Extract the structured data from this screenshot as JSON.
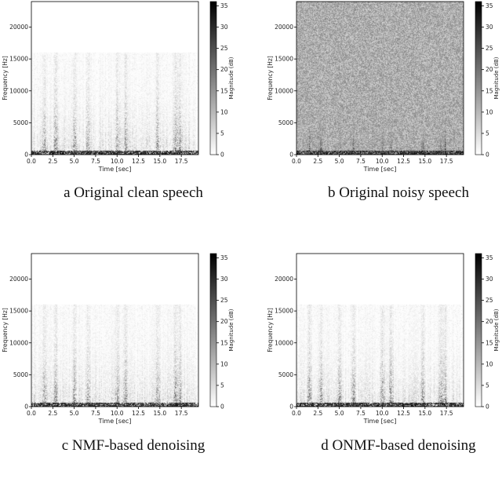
{
  "figure": {
    "panels": [
      {
        "id": "a",
        "caption": "a Original clean speech"
      },
      {
        "id": "b",
        "caption": "b Original noisy speech"
      },
      {
        "id": "c",
        "caption": "c NMF-based denoising"
      },
      {
        "id": "d",
        "caption": "d ONMF-based denoising"
      }
    ]
  },
  "chart_data": [
    {
      "type": "heatmap",
      "panel": "a",
      "title": "a Original clean speech",
      "xlabel": "Time [sec]",
      "ylabel": "Frequency [Hz]",
      "colorbar_label": "Magnitude (dB)",
      "xlim": [
        0,
        19.5
      ],
      "ylim": [
        0,
        24000
      ],
      "xticks": [
        "0.0",
        "2.5",
        "5.0",
        "7.5",
        "10.0",
        "12.5",
        "15.0",
        "17.5"
      ],
      "yticks": [
        "0",
        "5000",
        "10000",
        "15000",
        "20000"
      ],
      "colorbar_range": [
        0,
        36
      ],
      "colorbar_ticks": [
        "0",
        "5",
        "10",
        "15",
        "20",
        "25",
        "30",
        "35"
      ],
      "colormap": "gray_r",
      "background_noise": 0,
      "content_cutoff_hz": 16000,
      "speech_bursts_sec": [
        1.5,
        2.8,
        5.0,
        6.6,
        10.0,
        11.0,
        14.7,
        16.8,
        17.3
      ],
      "grid": false
    },
    {
      "type": "heatmap",
      "panel": "b",
      "title": "b Original noisy speech",
      "xlabel": "Time [sec]",
      "ylabel": "Frequency [Hz]",
      "colorbar_label": "Magnitude (dB)",
      "xlim": [
        0,
        19.5
      ],
      "ylim": [
        0,
        24000
      ],
      "xticks": [
        "0.0",
        "2.5",
        "5.0",
        "7.5",
        "10.0",
        "12.5",
        "15.0",
        "17.5"
      ],
      "yticks": [
        "0",
        "5000",
        "10000",
        "15000",
        "20000"
      ],
      "colorbar_range": [
        0,
        36
      ],
      "colorbar_ticks": [
        "0",
        "5",
        "10",
        "15",
        "20",
        "25",
        "30",
        "35"
      ],
      "colormap": "gray_r",
      "background_noise": 0.32,
      "content_cutoff_hz": 24000,
      "speech_bursts_sec": [
        1.5,
        2.8,
        5.0,
        6.6,
        10.0,
        11.0,
        14.7,
        16.8,
        17.3
      ],
      "grid": false
    },
    {
      "type": "heatmap",
      "panel": "c",
      "title": "c NMF-based denoising",
      "xlabel": "Time [sec]",
      "ylabel": "Frequency [Hz]",
      "colorbar_label": "Magnitude (dB)",
      "xlim": [
        0,
        19.5
      ],
      "ylim": [
        0,
        24000
      ],
      "xticks": [
        "0.0",
        "2.5",
        "5.0",
        "7.5",
        "10.0",
        "12.5",
        "15.0",
        "17.5"
      ],
      "yticks": [
        "0",
        "5000",
        "10000",
        "15000",
        "20000"
      ],
      "colorbar_range": [
        0,
        36
      ],
      "colorbar_ticks": [
        "0",
        "5",
        "10",
        "15",
        "20",
        "25",
        "30",
        "35"
      ],
      "colormap": "gray_r",
      "background_noise": 0,
      "content_cutoff_hz": 16000,
      "speech_bursts_sec": [
        1.5,
        2.8,
        5.0,
        6.6,
        10.0,
        11.0,
        14.7,
        16.8,
        17.3
      ],
      "grid": false
    },
    {
      "type": "heatmap",
      "panel": "d",
      "title": "d ONMF-based denoising",
      "xlabel": "Time [sec]",
      "ylabel": "Frequency [Hz]",
      "colorbar_label": "Magnitude (dB)",
      "xlim": [
        0,
        19.5
      ],
      "ylim": [
        0,
        24000
      ],
      "xticks": [
        "0.0",
        "2.5",
        "5.0",
        "7.5",
        "10.0",
        "12.5",
        "15.0",
        "17.5"
      ],
      "yticks": [
        "0",
        "5000",
        "10000",
        "15000",
        "20000"
      ],
      "colorbar_range": [
        0,
        36
      ],
      "colorbar_ticks": [
        "0",
        "5",
        "10",
        "15",
        "20",
        "25",
        "30",
        "35"
      ],
      "colormap": "gray_r",
      "background_noise": 0,
      "content_cutoff_hz": 16000,
      "speech_bursts_sec": [
        1.5,
        2.8,
        5.0,
        6.6,
        10.0,
        11.0,
        14.7,
        16.8,
        17.3
      ],
      "grid": false
    }
  ]
}
